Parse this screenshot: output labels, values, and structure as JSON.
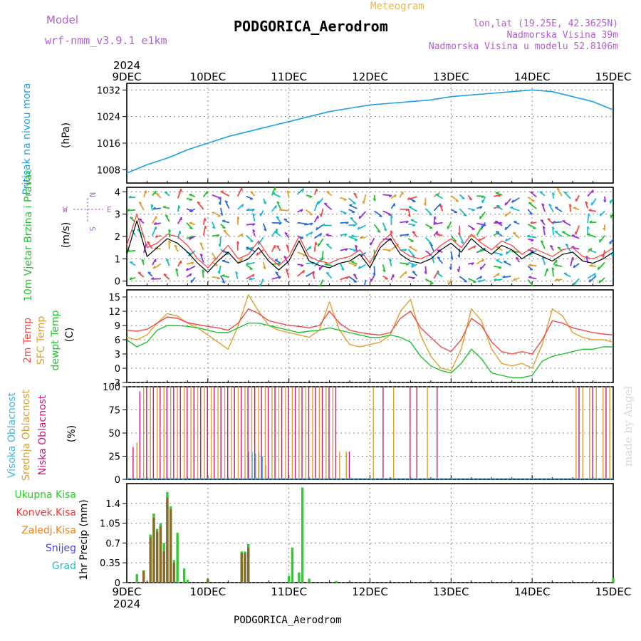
{
  "header": {
    "model_label": "Model",
    "model_name": "wrf-nmm_v3.9.1 e1km",
    "title": "PODGORICA_Aerodrom",
    "subtitle": "Meteogram",
    "lonlat": "lon,lat (19.25E, 42.3625N)",
    "elevation": "Nadmorska Visina 39m",
    "model_elevation": "Nadmorska Visina u modelu 52.8106m"
  },
  "footer": {
    "station": "PODGORICA_Aerodrom"
  },
  "watermark": "made by Angel",
  "colors": {
    "pressure": "#1fa0e6",
    "wind_speed": "#000000",
    "wind_gust": "#ff3b3b",
    "temp_2m": "#f04a4a",
    "temp_sfc": "#e0a030",
    "dewpoint": "#22c22e",
    "cloud_high": "#3fb6e6",
    "cloud_mid": "#d9a030",
    "cloud_low": "#d0157e",
    "precip_total": "#2ecc2e",
    "precip_conv": "#ff3333",
    "precip_frozen": "#f08020",
    "snow": "#4444ff",
    "graupel": "#22c0c0",
    "axis_label_violet": "#b060d0"
  },
  "chart_data": [
    {
      "type": "line",
      "id": "pressure",
      "ylabel_left": "Pritisak na nivou mora",
      "ylabel_unit": "(hPa)",
      "x_ticks": [
        "9DEC",
        "10DEC",
        "11DEC",
        "12DEC",
        "13DEC",
        "14DEC",
        "15DEC"
      ],
      "x_top_year": "2024",
      "x_range_hours": [
        0,
        144
      ],
      "ylim": [
        1004,
        1034
      ],
      "yticks": [
        1008,
        1016,
        1024,
        1032
      ],
      "series": [
        {
          "x": [
            0,
            6,
            12,
            18,
            24,
            30,
            36,
            42,
            48,
            54,
            60,
            66,
            72,
            78,
            84,
            90,
            96,
            102,
            108,
            114,
            120,
            126,
            132,
            138,
            144
          ],
          "values": [
            1007.0,
            1009.5,
            1011.5,
            1014.0,
            1016.0,
            1018.0,
            1019.5,
            1021.0,
            1022.5,
            1024.0,
            1025.5,
            1026.5,
            1027.5,
            1028.0,
            1028.5,
            1029.0,
            1030.0,
            1030.5,
            1031.0,
            1031.5,
            1032.0,
            1031.5,
            1030.0,
            1028.5,
            1026.0
          ]
        }
      ]
    },
    {
      "type": "line",
      "id": "wind",
      "ylabel_left": "10m Vjetar Brzina i Pravac",
      "ylabel_unit": "(m/s)",
      "compass": {
        "n": "N",
        "s": "S",
        "e": "E",
        "w": "W"
      },
      "ylim": [
        -0.2,
        4.2
      ],
      "yticks": [
        0,
        1,
        2,
        3,
        4
      ],
      "series": [
        {
          "name": "speed",
          "x": [
            0,
            3,
            6,
            9,
            12,
            15,
            18,
            21,
            24,
            27,
            30,
            33,
            36,
            39,
            42,
            45,
            48,
            51,
            54,
            57,
            60,
            63,
            66,
            69,
            72,
            75,
            78,
            81,
            84,
            87,
            90,
            93,
            96,
            99,
            102,
            105,
            108,
            111,
            114,
            117,
            120,
            123,
            126,
            129,
            132,
            135,
            138,
            141,
            144
          ],
          "values": [
            1.2,
            2.7,
            1.1,
            1.5,
            1.9,
            1.7,
            1.3,
            0.8,
            0.4,
            0.9,
            1.3,
            0.8,
            1.0,
            1.5,
            0.9,
            0.5,
            0.9,
            1.8,
            0.9,
            0.7,
            0.6,
            0.8,
            0.9,
            1.2,
            0.6,
            1.5,
            1.9,
            1.2,
            0.9,
            0.8,
            1.0,
            1.4,
            1.7,
            1.3,
            1.9,
            1.5,
            1.2,
            1.6,
            1.4,
            1.0,
            1.3,
            1.1,
            0.9,
            1.2,
            1.3,
            0.9,
            0.8,
            1.0,
            1.3
          ]
        },
        {
          "name": "gust",
          "x": [
            0,
            3,
            6,
            9,
            12,
            15,
            18,
            21,
            24,
            27,
            30,
            33,
            36,
            39,
            42,
            45,
            48,
            51,
            54,
            57,
            60,
            63,
            66,
            69,
            72,
            75,
            78,
            81,
            84,
            87,
            90,
            93,
            96,
            99,
            102,
            105,
            108,
            111,
            114,
            117,
            120,
            123,
            126,
            129,
            132,
            135,
            138,
            141,
            144
          ],
          "values": [
            1.6,
            3.0,
            1.5,
            1.7,
            2.1,
            2.0,
            1.6,
            1.0,
            0.6,
            1.1,
            1.6,
            1.0,
            1.2,
            1.8,
            1.1,
            0.7,
            1.1,
            2.0,
            1.1,
            0.9,
            0.8,
            1.0,
            1.1,
            1.4,
            0.8,
            1.7,
            2.1,
            1.4,
            1.1,
            1.0,
            1.2,
            1.6,
            1.9,
            1.5,
            2.1,
            1.7,
            1.4,
            1.8,
            1.6,
            1.2,
            1.5,
            1.3,
            1.1,
            1.4,
            1.5,
            1.1,
            1.0,
            1.2,
            1.5
          ]
        }
      ]
    },
    {
      "type": "line",
      "id": "temperature",
      "ylabel_lines": [
        "2m Temp",
        "SFC Temp",
        "dewpt Temp"
      ],
      "ylabel_unit": "(C)",
      "ylim": [
        -3,
        16.5
      ],
      "yticks": [
        -3,
        0,
        3,
        6,
        9,
        12,
        15
      ],
      "series": [
        {
          "name": "2m Temp",
          "x": [
            0,
            3,
            6,
            9,
            12,
            15,
            18,
            21,
            24,
            27,
            30,
            33,
            36,
            39,
            42,
            45,
            48,
            51,
            54,
            57,
            60,
            63,
            66,
            69,
            72,
            75,
            78,
            81,
            84,
            87,
            90,
            93,
            96,
            99,
            102,
            105,
            108,
            111,
            114,
            117,
            120,
            123,
            126,
            129,
            132,
            135,
            138,
            141,
            144
          ],
          "values": [
            8.0,
            7.8,
            8.2,
            9.5,
            10.8,
            10.5,
            9.6,
            9.2,
            8.8,
            8.5,
            8.0,
            9.5,
            12.5,
            11.5,
            10.0,
            9.5,
            9.0,
            8.8,
            8.5,
            9.0,
            12.0,
            9.5,
            8.0,
            7.5,
            7.2,
            7.0,
            7.5,
            10.5,
            12.0,
            8.5,
            6.5,
            4.5,
            3.5,
            6.0,
            10.5,
            9.0,
            5.5,
            3.5,
            3.0,
            3.5,
            3.0,
            6.0,
            10.0,
            9.5,
            8.5,
            8.0,
            7.5,
            7.2,
            7.0
          ]
        },
        {
          "name": "SFC Temp",
          "x": [
            0,
            3,
            6,
            9,
            12,
            15,
            18,
            21,
            24,
            27,
            30,
            33,
            36,
            39,
            42,
            45,
            48,
            51,
            54,
            57,
            60,
            63,
            66,
            69,
            72,
            75,
            78,
            81,
            84,
            87,
            90,
            93,
            96,
            99,
            102,
            105,
            108,
            111,
            114,
            117,
            120,
            123,
            126,
            129,
            132,
            135,
            138,
            141,
            144
          ],
          "values": [
            6.5,
            6.0,
            7.0,
            9.5,
            11.5,
            11.0,
            9.5,
            8.5,
            7.0,
            5.5,
            4.0,
            9.0,
            15.5,
            12.0,
            9.0,
            8.0,
            7.5,
            7.0,
            6.5,
            8.0,
            14.0,
            8.0,
            5.0,
            4.5,
            5.0,
            5.5,
            7.0,
            12.0,
            14.5,
            7.0,
            2.5,
            0.0,
            -0.5,
            4.0,
            12.5,
            10.0,
            4.0,
            1.0,
            0.5,
            1.0,
            0.0,
            5.0,
            12.5,
            11.0,
            7.5,
            6.5,
            6.0,
            6.0,
            5.5
          ]
        },
        {
          "name": "dewpt Temp",
          "x": [
            0,
            3,
            6,
            9,
            12,
            15,
            18,
            21,
            24,
            27,
            30,
            33,
            36,
            39,
            42,
            45,
            48,
            51,
            54,
            57,
            60,
            63,
            66,
            69,
            72,
            75,
            78,
            81,
            84,
            87,
            90,
            93,
            96,
            99,
            102,
            105,
            108,
            111,
            114,
            117,
            120,
            123,
            126,
            129,
            132,
            135,
            138,
            141,
            144
          ],
          "values": [
            6.0,
            4.5,
            5.5,
            8.0,
            9.0,
            9.0,
            8.8,
            8.5,
            8.0,
            7.5,
            7.5,
            8.5,
            9.5,
            9.5,
            9.0,
            8.5,
            8.0,
            7.5,
            7.8,
            8.0,
            8.5,
            8.0,
            7.5,
            7.0,
            6.5,
            6.5,
            7.0,
            6.5,
            5.5,
            2.5,
            0.5,
            -0.5,
            -1.0,
            1.0,
            4.0,
            2.0,
            -1.0,
            -1.5,
            -2.0,
            -2.0,
            -1.5,
            1.5,
            2.5,
            3.0,
            3.5,
            4.0,
            4.0,
            4.5,
            4.5
          ]
        }
      ]
    },
    {
      "type": "bar",
      "id": "clouds",
      "ylabel_lines": [
        "Visoka Oblacnost",
        "Srednja Oblacnost",
        "Niska Oblacnost"
      ],
      "ylabel_unit": "(%)",
      "ylim": [
        0,
        100
      ],
      "yticks": [
        0,
        25,
        50,
        75,
        100
      ],
      "series": [
        {
          "name": "Visoka",
          "x": [
            36,
            37,
            38,
            39,
            40,
            41
          ],
          "values": [
            30,
            30,
            28,
            30,
            25,
            15
          ]
        },
        {
          "name": "Srednja",
          "x": [
            3,
            5,
            7,
            9,
            11,
            13,
            15,
            17,
            19,
            21,
            23,
            25,
            27,
            29,
            31,
            33,
            35,
            37,
            39,
            41,
            43,
            45,
            47,
            49,
            51,
            53,
            55,
            57,
            59,
            61,
            63,
            65,
            73,
            79,
            89,
            133,
            135,
            137,
            139,
            141,
            143
          ],
          "values": [
            40,
            100,
            100,
            100,
            100,
            100,
            100,
            100,
            100,
            100,
            100,
            100,
            100,
            100,
            100,
            100,
            100,
            100,
            100,
            100,
            100,
            100,
            100,
            100,
            100,
            100,
            100,
            100,
            100,
            100,
            30,
            30,
            100,
            100,
            100,
            100,
            100,
            100,
            100,
            100,
            100
          ]
        },
        {
          "name": "Niska",
          "x": [
            2,
            4,
            6,
            8,
            10,
            12,
            14,
            16,
            18,
            20,
            22,
            24,
            26,
            28,
            30,
            32,
            34,
            36,
            38,
            40,
            42,
            44,
            46,
            48,
            50,
            52,
            54,
            56,
            58,
            60,
            62,
            66,
            76,
            84,
            86,
            92,
            134,
            138,
            142
          ],
          "values": [
            35,
            95,
            100,
            100,
            100,
            100,
            100,
            100,
            100,
            100,
            100,
            100,
            100,
            100,
            100,
            100,
            100,
            100,
            100,
            100,
            100,
            100,
            100,
            100,
            100,
            100,
            100,
            100,
            100,
            100,
            100,
            30,
            100,
            100,
            100,
            100,
            100,
            100,
            100
          ]
        }
      ]
    },
    {
      "type": "bar",
      "id": "precip",
      "ylabel_unit": "1hr Precip (mm)",
      "legend": [
        "Ukupna Kisa",
        "Konvek.Kisa",
        "Zaledj.Kisa",
        "Snijeg",
        "Grad"
      ],
      "ylim": [
        0,
        1.75
      ],
      "yticks": [
        0,
        0.35,
        0.7,
        1.05,
        1.4
      ],
      "ytick_labels": [
        "0",
        "0.35",
        "0.7",
        "1.05",
        "1.4"
      ],
      "series": [
        {
          "name": "Ukupna Kisa",
          "x": [
            3,
            5,
            7,
            8,
            9,
            10,
            11,
            12,
            13,
            14,
            15,
            17,
            18,
            24,
            34,
            35,
            36,
            48,
            49,
            51,
            52,
            54,
            62,
            144
          ],
          "values": [
            0.15,
            0.22,
            0.85,
            1.22,
            0.95,
            1.05,
            0.7,
            1.6,
            1.35,
            0.4,
            0.88,
            0.25,
            0.05,
            0.07,
            0.55,
            0.55,
            0.68,
            0.12,
            0.62,
            0.18,
            1.68,
            0.07,
            0.03,
            0.08
          ]
        },
        {
          "name": "Konvek.Kisa",
          "x": [
            5,
            7,
            8,
            9,
            10,
            11,
            12,
            13,
            14,
            24,
            34,
            35,
            36
          ],
          "values": [
            0.2,
            0.8,
            1.15,
            0.9,
            1.0,
            0.55,
            1.5,
            1.3,
            0.35,
            0.06,
            0.52,
            0.52,
            0.62
          ]
        }
      ]
    }
  ]
}
